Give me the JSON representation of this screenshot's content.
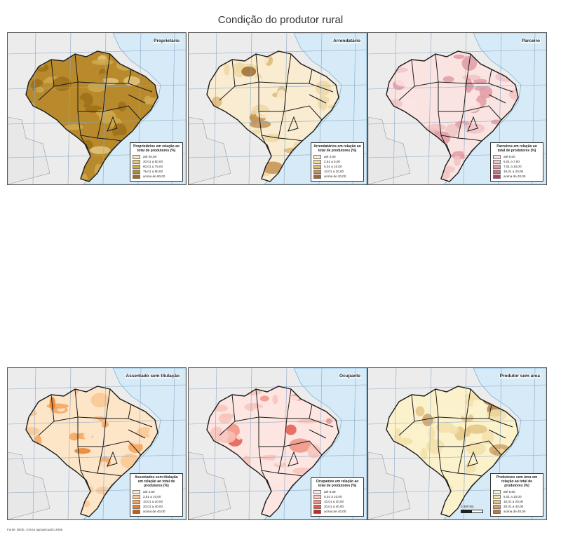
{
  "title": "Condição do produtor rural",
  "source": "Fonte: IBGE, Censo agropecuário 2006.",
  "panels": [
    {
      "name": "Proprietário",
      "legend_title": "Proprietários em relação ao total de produtores (%)",
      "classes": [
        {
          "label": "até 20,00",
          "color": "#f3e3b6"
        },
        {
          "label": "20,01 a 60,00",
          "color": "#e2c680"
        },
        {
          "label": "60,01 a 75,00",
          "color": "#cfa94f"
        },
        {
          "label": "75,01 a 90,00",
          "color": "#b88a2c"
        },
        {
          "label": "acima de 90,00",
          "color": "#9c6f17"
        }
      ]
    },
    {
      "name": "Arrendatário",
      "legend_title": "Arrendatários em relação ao total de produtores (%)",
      "classes": [
        {
          "label": "até 2,50",
          "color": "#f9ecd0"
        },
        {
          "label": "2,51 a 5,00",
          "color": "#efd8a4"
        },
        {
          "label": "5,01 a 10,00",
          "color": "#ddb977"
        },
        {
          "label": "10,01 a 20,00",
          "color": "#c49350"
        },
        {
          "label": "acima de 20,00",
          "color": "#9e6b2c"
        }
      ]
    },
    {
      "name": "Parceiro",
      "legend_title": "Parceiros em relação ao total de produtores (%)",
      "classes": [
        {
          "label": "até 5,00",
          "color": "#fae4e1"
        },
        {
          "label": "5,01 a 7,50",
          "color": "#f1c3c4"
        },
        {
          "label": "7,51 a 10,00",
          "color": "#e39aa4"
        },
        {
          "label": "10,01 a 20,00",
          "color": "#cf6d84"
        },
        {
          "label": "acima de 20,00",
          "color": "#b04068"
        }
      ]
    },
    {
      "name": "Assentado sem titulação",
      "legend_title": "Assentados sem titulação em relação ao total de produtores (%)",
      "classes": [
        {
          "label": "até 2,50",
          "color": "#fde5c8"
        },
        {
          "label": "2,51 a 10,00",
          "color": "#f9c890"
        },
        {
          "label": "10,01 a 20,00",
          "color": "#f3a55c"
        },
        {
          "label": "20,01 a 40,00",
          "color": "#e6812e"
        },
        {
          "label": "acima de 40,00",
          "color": "#c75d10"
        }
      ]
    },
    {
      "name": "Ocupante",
      "legend_title": "Ocupantes em relação ao total de produtores (%)",
      "classes": [
        {
          "label": "até 5,00",
          "color": "#fde6e2"
        },
        {
          "label": "5,01 a 10,00",
          "color": "#f8c3bb"
        },
        {
          "label": "10,01 a 20,00",
          "color": "#f09083"
        },
        {
          "label": "20,01 a 40,00",
          "color": "#e15a4c"
        },
        {
          "label": "acima de 40,00",
          "color": "#c52b24"
        }
      ]
    },
    {
      "name": "Produtor sem área",
      "legend_title": "Produtores sem área em relação ao total de produtores (%)",
      "classes": [
        {
          "label": "até 5,00",
          "color": "#fbf2cc"
        },
        {
          "label": "5,01 a 10,00",
          "color": "#f2e0a8"
        },
        {
          "label": "10,01 a 20,00",
          "color": "#e3c585"
        },
        {
          "label": "20,01 a 40,00",
          "color": "#cfa266"
        },
        {
          "label": "acima de 40,00",
          "color": "#b27c45"
        }
      ],
      "scale_label": "0   300 km"
    }
  ]
}
